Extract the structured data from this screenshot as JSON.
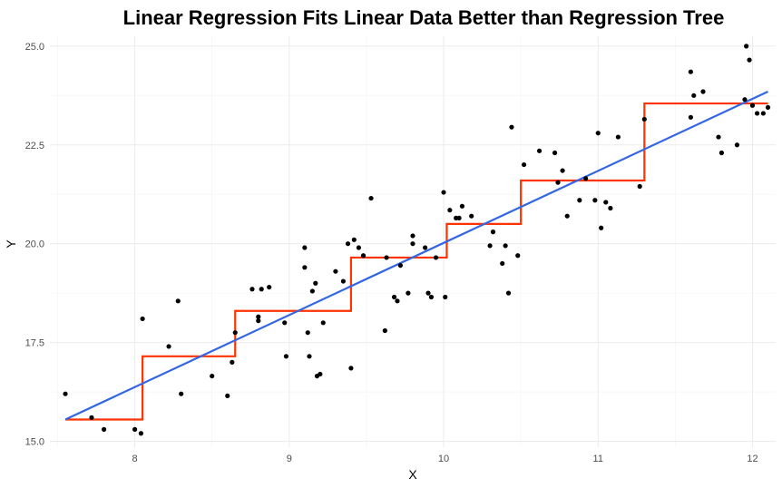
{
  "chart_data": {
    "type": "scatter",
    "title": "Linear Regression Fits Linear Data Better than Regression Tree",
    "xlabel": "X",
    "ylabel": "Y",
    "xlim": [
      7.45,
      12.15
    ],
    "ylim": [
      14.85,
      25.25
    ],
    "x_ticks": [
      8,
      9,
      10,
      11,
      12
    ],
    "y_ticks": [
      15.0,
      17.5,
      20.0,
      22.5,
      25.0
    ],
    "x_tick_labels": [
      "8",
      "9",
      "10",
      "11",
      "12"
    ],
    "y_tick_labels": [
      "15.0",
      "17.5",
      "20.0",
      "22.5",
      "25.0"
    ],
    "grid": true,
    "colors": {
      "points": "#000000",
      "linear_fit": "#3366e6",
      "tree_fit": "#ff3300"
    },
    "series": [
      {
        "kind": "points",
        "x": [
          7.55,
          7.72,
          7.8,
          8.0,
          8.04,
          8.05,
          8.22,
          8.28,
          8.3,
          8.5,
          8.6,
          8.63,
          8.65,
          8.76,
          8.8,
          8.8,
          8.82,
          8.87,
          8.97,
          8.98,
          9.1,
          9.1,
          9.12,
          9.13,
          9.15,
          9.17,
          9.18,
          9.2,
          9.22,
          9.3,
          9.35,
          9.38,
          9.4,
          9.42,
          9.45,
          9.48,
          9.53,
          9.62,
          9.63,
          9.68,
          9.7,
          9.72,
          9.77,
          9.8,
          9.8,
          9.88,
          9.9,
          9.92,
          9.95,
          10.0,
          10.01,
          10.04,
          10.08,
          10.1,
          10.12,
          10.18,
          10.3,
          10.32,
          10.38,
          10.4,
          10.42,
          10.44,
          10.48,
          10.52,
          10.62,
          10.72,
          10.74,
          10.77,
          10.8,
          10.88,
          10.92,
          10.98,
          11.0,
          11.02,
          11.05,
          11.08,
          11.13,
          11.27,
          11.3,
          11.6,
          11.6,
          11.62,
          11.68,
          11.78,
          11.8,
          11.9,
          11.95,
          11.96,
          11.98,
          12.0,
          12.03,
          12.07,
          12.1
        ],
        "y": [
          16.2,
          15.6,
          15.3,
          15.3,
          15.2,
          18.1,
          17.4,
          18.55,
          16.2,
          16.65,
          16.15,
          17.0,
          17.75,
          18.85,
          18.05,
          18.15,
          18.85,
          18.9,
          18.0,
          17.15,
          19.4,
          19.9,
          17.75,
          17.15,
          18.8,
          19.0,
          16.65,
          16.7,
          18.0,
          19.3,
          19.05,
          20.0,
          16.85,
          20.1,
          19.9,
          19.7,
          21.15,
          17.8,
          19.65,
          18.65,
          18.55,
          19.45,
          18.75,
          20.2,
          20.0,
          19.9,
          18.75,
          18.65,
          19.65,
          21.3,
          18.65,
          20.85,
          20.65,
          20.65,
          20.95,
          20.7,
          19.95,
          20.3,
          19.5,
          19.95,
          18.75,
          22.95,
          19.7,
          22.0,
          22.35,
          22.3,
          21.55,
          21.85,
          20.7,
          21.1,
          21.65,
          21.1,
          22.8,
          20.4,
          21.05,
          20.9,
          22.7,
          21.45,
          23.15,
          24.35,
          23.2,
          23.75,
          23.85,
          22.7,
          22.3,
          22.5,
          23.65,
          25.0,
          24.65,
          23.5,
          23.3,
          23.3,
          23.45
        ]
      },
      {
        "kind": "linear-fit",
        "x": [
          7.55,
          12.1
        ],
        "y": [
          15.55,
          23.85
        ]
      },
      {
        "kind": "tree-fit",
        "x": [
          7.55,
          8.05,
          8.05,
          8.65,
          8.65,
          9.4,
          9.4,
          10.02,
          10.02,
          10.5,
          10.5,
          11.3,
          11.3,
          12.1
        ],
        "y": [
          15.55,
          15.55,
          17.15,
          17.15,
          18.3,
          18.3,
          19.65,
          19.65,
          20.5,
          20.5,
          21.6,
          21.6,
          23.55,
          23.55
        ]
      }
    ]
  }
}
